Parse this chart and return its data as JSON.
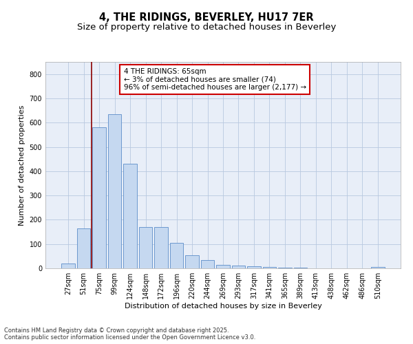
{
  "title": "4, THE RIDINGS, BEVERLEY, HU17 7ER",
  "subtitle": "Size of property relative to detached houses in Beverley",
  "xlabel": "Distribution of detached houses by size in Beverley",
  "ylabel": "Number of detached properties",
  "categories": [
    "27sqm",
    "51sqm",
    "75sqm",
    "99sqm",
    "124sqm",
    "148sqm",
    "172sqm",
    "196sqm",
    "220sqm",
    "244sqm",
    "269sqm",
    "293sqm",
    "317sqm",
    "341sqm",
    "365sqm",
    "389sqm",
    "413sqm",
    "438sqm",
    "462sqm",
    "486sqm",
    "510sqm"
  ],
  "values": [
    20,
    165,
    580,
    635,
    430,
    170,
    170,
    105,
    55,
    35,
    15,
    10,
    8,
    5,
    4,
    2,
    1,
    0,
    0,
    0,
    5
  ],
  "bar_color": "#c5d8f0",
  "bar_edge_color": "#5b8dc8",
  "vline_x": 1.5,
  "vline_color": "#8b0000",
  "annotation_text": "4 THE RIDINGS: 65sqm\n← 3% of detached houses are smaller (74)\n96% of semi-detached houses are larger (2,177) →",
  "annotation_box_color": "#ffffff",
  "annotation_box_edge_color": "#cc0000",
  "ylim": [
    0,
    850
  ],
  "yticks": [
    0,
    100,
    200,
    300,
    400,
    500,
    600,
    700,
    800
  ],
  "background_color": "#e8eef8",
  "footer_text": "Contains HM Land Registry data © Crown copyright and database right 2025.\nContains public sector information licensed under the Open Government Licence v3.0.",
  "title_fontsize": 10.5,
  "subtitle_fontsize": 9.5,
  "axis_label_fontsize": 8,
  "tick_fontsize": 7,
  "annotation_fontsize": 7.5,
  "footer_fontsize": 6
}
